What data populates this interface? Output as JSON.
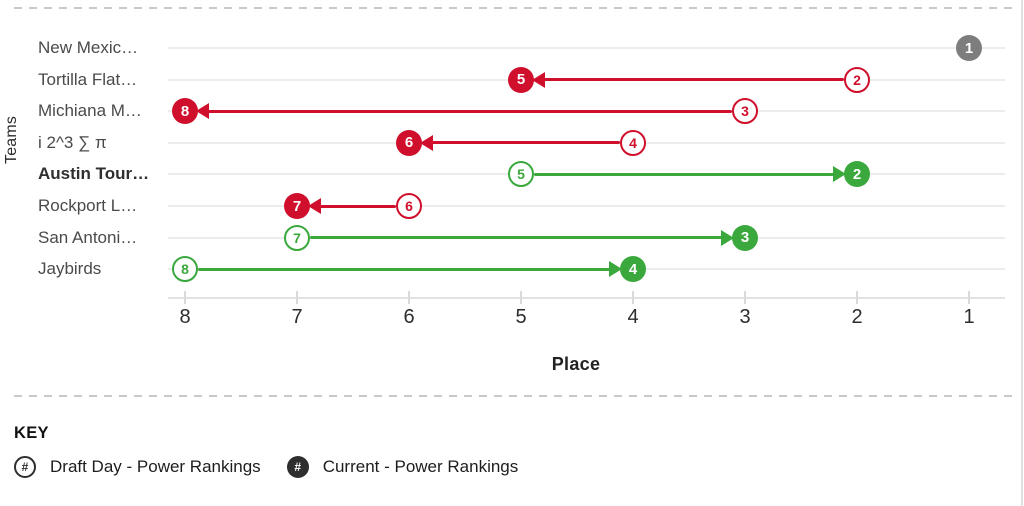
{
  "widget": {
    "y_axis_label": "Teams",
    "x_axis_label": "Place",
    "key": {
      "title": "KEY",
      "items": [
        {
          "icon": "draft-open-circle-hash-icon",
          "symbol": "#",
          "style": "open",
          "label": "Draft Day - Power Rankings"
        },
        {
          "icon": "current-filled-circle-hash-icon",
          "symbol": "#",
          "style": "filled",
          "label": "Current - Power Rankings"
        }
      ]
    }
  },
  "chart_data": {
    "type": "scatter",
    "variant": "dumbbell-arrow",
    "title": "",
    "xlabel": "Place",
    "ylabel": "Teams",
    "x_ticks": [
      8,
      7,
      6,
      5,
      4,
      3,
      2,
      1
    ],
    "x_axis_reversed": true,
    "x_range": [
      8,
      1
    ],
    "grid": "horizontal-row-lines",
    "legend": [
      "Draft Day - Power Rankings",
      "Current - Power Rankings"
    ],
    "teams": [
      {
        "name": "New Mexic…",
        "draft_day": 1,
        "current": 1,
        "change": "unchanged",
        "bold": false
      },
      {
        "name": "Tortilla Flat…",
        "draft_day": 2,
        "current": 5,
        "change": "declined",
        "bold": false
      },
      {
        "name": "Michiana M…",
        "draft_day": 3,
        "current": 8,
        "change": "declined",
        "bold": false
      },
      {
        "name": "i 2^3 ∑ π",
        "draft_day": 4,
        "current": 6,
        "change": "declined",
        "bold": false
      },
      {
        "name": "Austin Tour…",
        "draft_day": 5,
        "current": 2,
        "change": "improved",
        "bold": true
      },
      {
        "name": "Rockport L…",
        "draft_day": 6,
        "current": 7,
        "change": "declined",
        "bold": false
      },
      {
        "name": "San Antoni…",
        "draft_day": 7,
        "current": 3,
        "change": "improved",
        "bold": false
      },
      {
        "name": "Jaybirds",
        "draft_day": 8,
        "current": 4,
        "change": "improved",
        "bold": false
      }
    ],
    "colors": {
      "declined": "#d00f2c",
      "improved": "#3aa83d",
      "unchanged": "#7d7d7d"
    }
  }
}
